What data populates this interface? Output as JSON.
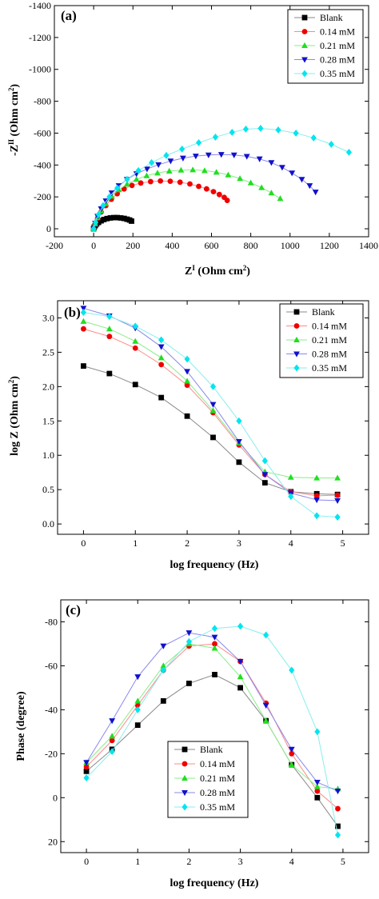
{
  "chart_data": [
    {
      "panel": "(a)",
      "type": "scatter",
      "xlabel": "Z",
      "xlabel_sup": "I",
      "xlabel_tail": " (Ohm cm",
      "xlabel_tail_sup": "2",
      "xlabel_close": ")",
      "ylabel": "-Z",
      "ylabel_sup": "II",
      "ylabel_tail": " (Ohm cm",
      "ylabel_tail_sup": "2",
      "ylabel_close": ")",
      "xlim": [
        -200,
        1400
      ],
      "ylim": [
        50,
        -1400
      ],
      "y_reversed": true,
      "xticks": [
        -200,
        0,
        200,
        400,
        600,
        800,
        1000,
        1200,
        1400
      ],
      "yticks": [
        0,
        -200,
        -400,
        -600,
        -800,
        -1000,
        -1200,
        -1400
      ],
      "legend_position": "top-right",
      "series": [
        {
          "name": "Blank",
          "color": "#000000",
          "marker": "square",
          "line": "#888888",
          "x": [
            0,
            3,
            8,
            15,
            25,
            38,
            52,
            68,
            85,
            103,
            120,
            138,
            155,
            170,
            183,
            193
          ],
          "y": [
            0,
            -10,
            -20,
            -30,
            -40,
            -50,
            -58,
            -64,
            -68,
            -70,
            -70,
            -68,
            -65,
            -60,
            -55,
            -48
          ]
        },
        {
          "name": "0.14 mM",
          "color": "#ee0000",
          "marker": "circle",
          "line": "#ff8888",
          "x": [
            0,
            8,
            20,
            38,
            62,
            90,
            120,
            155,
            195,
            240,
            290,
            340,
            390,
            440,
            490,
            535,
            575,
            610,
            640,
            665,
            680
          ],
          "y": [
            0,
            -30,
            -65,
            -105,
            -145,
            -185,
            -220,
            -250,
            -272,
            -287,
            -296,
            -300,
            -298,
            -292,
            -281,
            -266,
            -250,
            -233,
            -215,
            -197,
            -178
          ]
        },
        {
          "name": "0.21 mM",
          "color": "#22dd22",
          "marker": "triangle-up",
          "line": "#88ee88",
          "x": [
            0,
            8,
            20,
            38,
            62,
            92,
            128,
            170,
            218,
            270,
            325,
            385,
            445,
            505,
            565,
            625,
            685,
            745,
            800,
            855,
            905,
            950
          ],
          "y": [
            0,
            -32,
            -70,
            -112,
            -158,
            -205,
            -245,
            -280,
            -310,
            -333,
            -350,
            -362,
            -368,
            -370,
            -365,
            -355,
            -338,
            -315,
            -288,
            -258,
            -225,
            -190
          ]
        },
        {
          "name": "0.28 mM",
          "color": "#1111cc",
          "marker": "triangle-down",
          "line": "#8888ee",
          "x": [
            0,
            8,
            20,
            38,
            62,
            92,
            128,
            170,
            218,
            272,
            330,
            392,
            455,
            520,
            585,
            650,
            715,
            780,
            845,
            905,
            960,
            1010,
            1060,
            1100,
            1130
          ],
          "y": [
            0,
            -35,
            -78,
            -125,
            -175,
            -225,
            -270,
            -310,
            -345,
            -375,
            -402,
            -425,
            -443,
            -456,
            -463,
            -466,
            -463,
            -454,
            -438,
            -415,
            -385,
            -350,
            -310,
            -270,
            -230
          ]
        },
        {
          "name": "0.35 mM",
          "color": "#00e5ee",
          "marker": "diamond",
          "line": "#88eeee",
          "x": [
            0,
            10,
            25,
            48,
            80,
            120,
            170,
            228,
            295,
            370,
            450,
            535,
            620,
            705,
            775,
            850,
            940,
            1030,
            1120,
            1210,
            1300
          ],
          "y": [
            0,
            -40,
            -90,
            -145,
            -200,
            -255,
            -310,
            -365,
            -415,
            -460,
            -500,
            -540,
            -575,
            -605,
            -625,
            -630,
            -620,
            -600,
            -570,
            -530,
            -480
          ]
        }
      ]
    },
    {
      "panel": "(b)",
      "type": "scatter",
      "xlabel": "log frequency (Hz)",
      "ylabel": "log Z (Ohm cm",
      "ylabel_sup": "2",
      "ylabel_close": ")",
      "xlim": [
        -0.5,
        5.5
      ],
      "ylim": [
        -0.15,
        3.25
      ],
      "xticks": [
        0,
        1,
        2,
        3,
        4,
        5
      ],
      "yticks": [
        0.0,
        0.5,
        1.0,
        1.5,
        2.0,
        2.5,
        3.0
      ],
      "ytick_labels": [
        "0.0",
        "0.5",
        "1.0",
        "1.5",
        "2.0",
        "2.5",
        "3.0"
      ],
      "legend_position": "top-right",
      "series": [
        {
          "name": "Blank",
          "color": "#000000",
          "marker": "square",
          "line": "#888888",
          "x": [
            0,
            0.5,
            1.0,
            1.5,
            2.0,
            2.5,
            3.0,
            3.5,
            4.0,
            4.5,
            4.9
          ],
          "y": [
            2.3,
            2.19,
            2.03,
            1.84,
            1.57,
            1.26,
            0.9,
            0.6,
            0.47,
            0.44,
            0.43
          ]
        },
        {
          "name": "0.14 mM",
          "color": "#ee0000",
          "marker": "circle",
          "line": "#ff8888",
          "x": [
            0,
            0.5,
            1.0,
            1.5,
            2.0,
            2.5,
            3.0,
            3.5,
            4.0,
            4.5,
            4.9
          ],
          "y": [
            2.84,
            2.73,
            2.56,
            2.32,
            2.02,
            1.62,
            1.15,
            0.72,
            0.47,
            0.41,
            0.42
          ]
        },
        {
          "name": "0.21 mM",
          "color": "#22dd22",
          "marker": "triangle-up",
          "line": "#88ee88",
          "x": [
            0,
            0.5,
            1.0,
            1.5,
            2.0,
            2.5,
            3.0,
            3.5,
            4.0,
            4.5,
            4.9
          ],
          "y": [
            2.95,
            2.84,
            2.66,
            2.42,
            2.08,
            1.65,
            1.18,
            0.76,
            0.68,
            0.67,
            0.67
          ]
        },
        {
          "name": "0.28 mM",
          "color": "#1111cc",
          "marker": "triangle-down",
          "line": "#8888ee",
          "x": [
            0,
            0.5,
            1.0,
            1.5,
            2.0,
            2.5,
            3.0,
            3.5,
            4.0,
            4.5,
            4.9
          ],
          "y": [
            3.14,
            3.03,
            2.85,
            2.58,
            2.22,
            1.74,
            1.2,
            0.72,
            0.45,
            0.35,
            0.34
          ]
        },
        {
          "name": "0.35 mM",
          "color": "#00e5ee",
          "marker": "diamond",
          "line": "#88eeee",
          "x": [
            0,
            0.5,
            1.0,
            1.5,
            2.0,
            2.5,
            3.0,
            3.5,
            4.0,
            4.5,
            4.9
          ],
          "y": [
            3.08,
            3.02,
            2.88,
            2.68,
            2.4,
            2.0,
            1.5,
            0.92,
            0.4,
            0.12,
            0.1
          ]
        }
      ]
    },
    {
      "panel": "(c)",
      "type": "scatter",
      "xlabel": "log frequency (Hz)",
      "ylabel": "Phase (degree)",
      "xlim": [
        -0.5,
        5.5
      ],
      "ylim": [
        25,
        -90
      ],
      "y_reversed": true,
      "xticks": [
        0,
        1,
        2,
        3,
        4,
        5
      ],
      "yticks": [
        20,
        0,
        -20,
        -40,
        -60,
        -80
      ],
      "legend_position": "bottom-left",
      "series": [
        {
          "name": "Blank",
          "color": "#000000",
          "marker": "square",
          "line": "#888888",
          "x": [
            0,
            0.5,
            1.0,
            1.5,
            2.0,
            2.5,
            3.0,
            3.5,
            4.0,
            4.5,
            4.9
          ],
          "y": [
            -12,
            -22,
            -33,
            -44,
            -52,
            -56,
            -50,
            -35,
            -15,
            0,
            13
          ]
        },
        {
          "name": "0.14 mM",
          "color": "#ee0000",
          "marker": "circle",
          "line": "#ff8888",
          "x": [
            0,
            0.5,
            1.0,
            1.5,
            2.0,
            2.5,
            3.0,
            3.5,
            4.0,
            4.5,
            4.9
          ],
          "y": [
            -14,
            -26,
            -42,
            -58,
            -69,
            -70,
            -62,
            -43,
            -20,
            -3,
            5
          ]
        },
        {
          "name": "0.21 mM",
          "color": "#22dd22",
          "marker": "triangle-up",
          "line": "#88ee88",
          "x": [
            0,
            0.5,
            1.0,
            1.5,
            2.0,
            2.5,
            3.0,
            3.5,
            4.0,
            4.5,
            4.9
          ],
          "y": [
            -16,
            -28,
            -44,
            -60,
            -70,
            -68,
            -55,
            -35,
            -15,
            -5,
            -4
          ]
        },
        {
          "name": "0.28 mM",
          "color": "#1111cc",
          "marker": "triangle-down",
          "line": "#8888ee",
          "x": [
            0,
            0.5,
            1.0,
            1.5,
            2.0,
            2.5,
            3.0,
            3.5,
            4.0,
            4.5,
            4.9
          ],
          "y": [
            -16,
            -35,
            -55,
            -69,
            -75,
            -73,
            -62,
            -42,
            -22,
            -7,
            -3
          ]
        },
        {
          "name": "0.35 mM",
          "color": "#00e5ee",
          "marker": "diamond",
          "line": "#88eeee",
          "x": [
            0,
            0.5,
            1.0,
            1.5,
            2.0,
            2.5,
            3.0,
            3.5,
            4.0,
            4.5,
            4.9
          ],
          "y": [
            -9,
            -21,
            -40,
            -58,
            -71,
            -77,
            -78,
            -74,
            -58,
            -30,
            17
          ]
        }
      ]
    }
  ]
}
